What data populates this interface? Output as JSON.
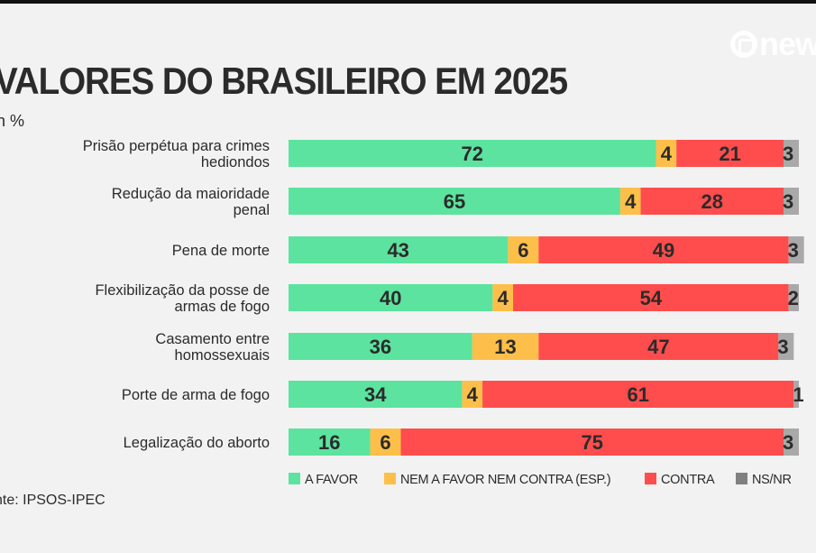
{
  "header": {
    "title": "VALORES DO BRASILEIRO EM 2025",
    "subtitle": "n %",
    "logo": "new"
  },
  "footer": {
    "source": "nte: IPSOS-IPEC"
  },
  "colors": {
    "a_favor": "#5ce39f",
    "nem": "#fdbf4a",
    "contra": "#ff4d4d",
    "nsnr": "#a9a9a9",
    "legend_nsnr": "#808080",
    "background": "#f2f2f2",
    "text": "#2b2b2b"
  },
  "chart_data": {
    "type": "bar",
    "orientation": "horizontal",
    "stacked": true,
    "title": "VALORES DO BRASILEIRO EM 2025",
    "unit": "%",
    "categories": [
      [
        "Prisão perpétua para crimes",
        "hediondos"
      ],
      [
        "Redução da maioridade",
        "penal"
      ],
      [
        "Pena de morte"
      ],
      [
        "Flexibilização da posse de",
        "armas de fogo"
      ],
      [
        "Casamento entre",
        "homossexuais"
      ],
      [
        "Porte de arma de fogo"
      ],
      [
        "Legalização do aborto"
      ]
    ],
    "series": [
      {
        "name": "A FAVOR",
        "key": "a_favor",
        "values": [
          72,
          65,
          43,
          40,
          36,
          34,
          16
        ]
      },
      {
        "name": "NEM A FAVOR NEM CONTRA (ESP.)",
        "key": "nem",
        "values": [
          4,
          4,
          6,
          4,
          13,
          4,
          6
        ]
      },
      {
        "name": "CONTRA",
        "key": "contra",
        "values": [
          21,
          28,
          49,
          54,
          47,
          61,
          75
        ]
      },
      {
        "name": "NS/NR",
        "key": "nsnr",
        "values": [
          3,
          3,
          3,
          2,
          3,
          1,
          3
        ]
      }
    ],
    "xlim": [
      0,
      100
    ],
    "grid": false,
    "legend_position": "bottom"
  }
}
